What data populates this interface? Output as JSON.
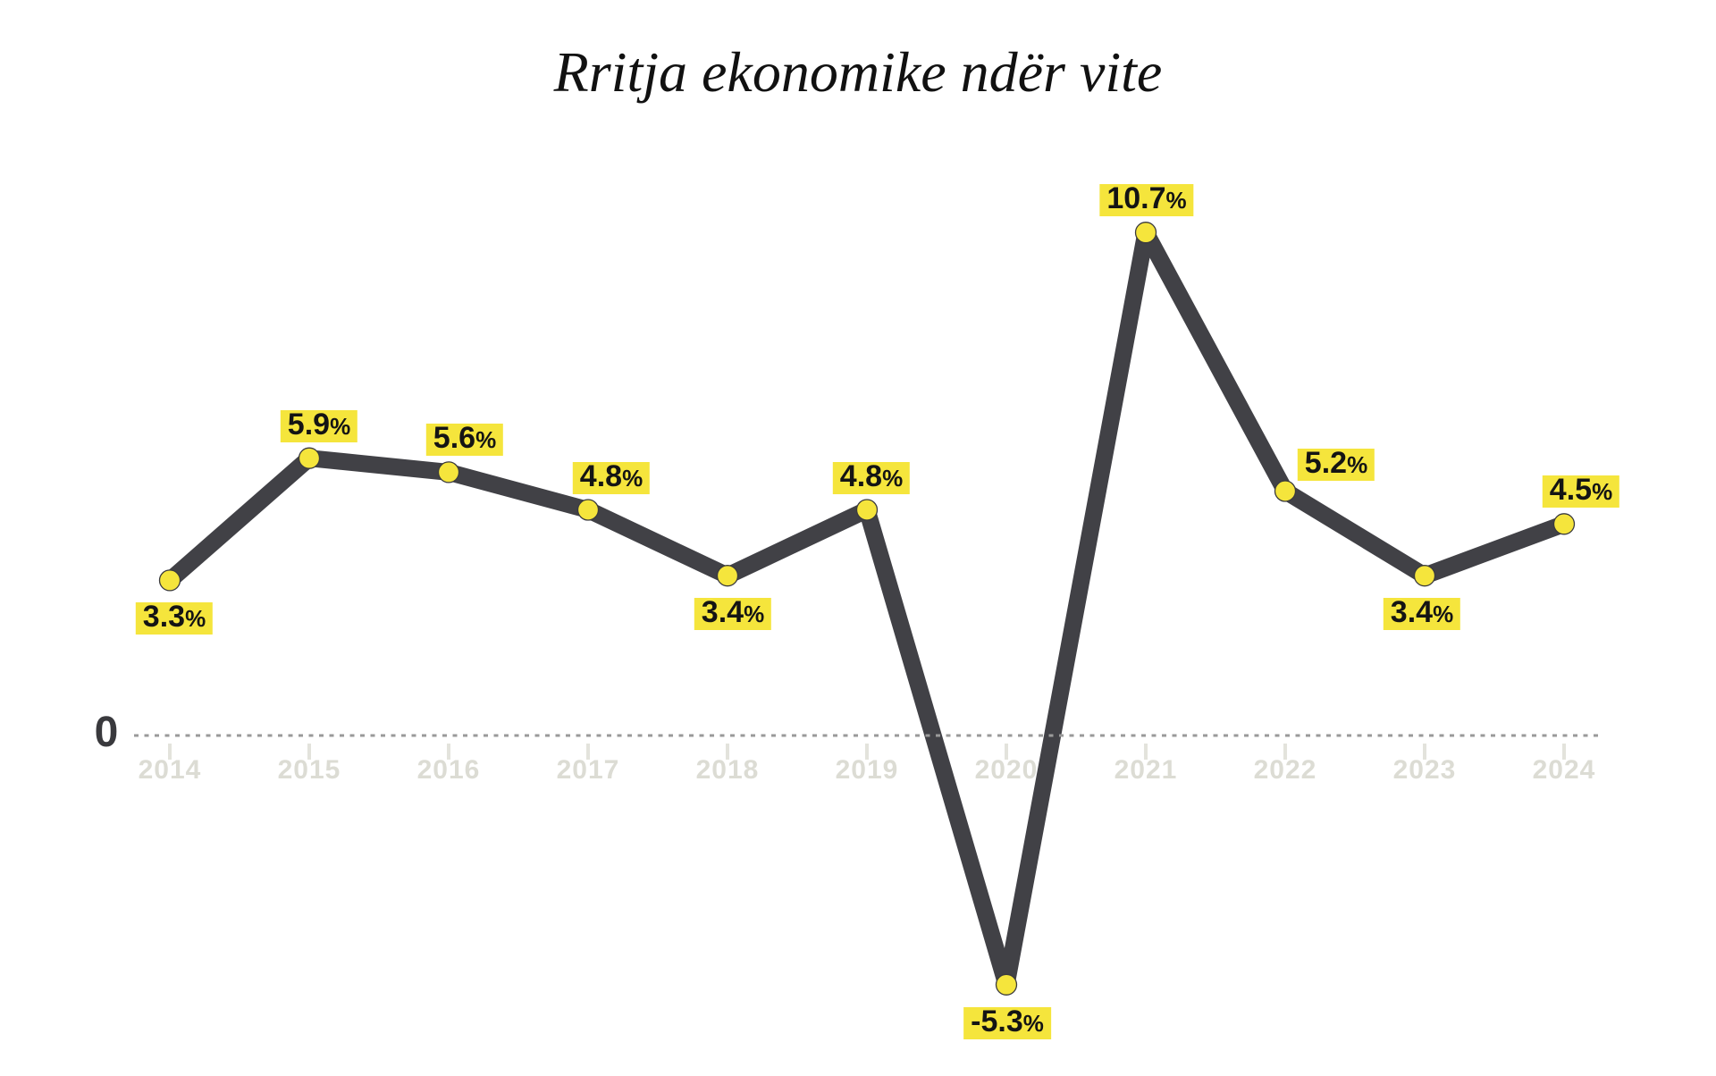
{
  "page": {
    "background": "#FFFFFF"
  },
  "header": {
    "title": "Rritja ekonomike ndër vite"
  },
  "axis": {
    "zero_label": "0",
    "years": [
      "2014",
      "2015",
      "2016",
      "2017",
      "2018",
      "2019",
      "2020",
      "2021",
      "2022",
      "2023",
      "2024"
    ]
  },
  "chart_data": {
    "type": "line",
    "title": "Rritja ekonomike ndër vite",
    "x": [
      2014,
      2015,
      2016,
      2017,
      2018,
      2019,
      2020,
      2021,
      2022,
      2023,
      2024
    ],
    "values": [
      3.3,
      5.9,
      5.6,
      4.8,
      3.4,
      4.8,
      -5.3,
      10.7,
      5.2,
      3.4,
      4.5
    ],
    "point_labels": [
      "3.3%",
      "5.9%",
      "5.6%",
      "4.8%",
      "3.4%",
      "4.8%",
      "-5.3%",
      "10.7%",
      "5.2%",
      "3.4%",
      "4.5%"
    ],
    "xlabel": "",
    "ylabel": "",
    "ylim": [
      -7.3,
      12.5
    ],
    "baseline": 0,
    "grid": "dotted horizontal line at zero only",
    "legend": "none",
    "marker": "filled circle",
    "colors": {
      "line": "#414146",
      "marker_fill": "#F5E53C",
      "marker_stroke": "#3A3A3E",
      "label_bg": "#F5E53C",
      "label_text": "#141414",
      "year_label": "#DCDCD4",
      "tick": "#E3E3DC",
      "zero_line": "#9A9A9A",
      "zero_label": "#39393D",
      "title": "#111111"
    },
    "label_layout": [
      {
        "side": "below",
        "dx": 5
      },
      {
        "side": "above",
        "dx": 11
      },
      {
        "side": "above",
        "dx": 18
      },
      {
        "side": "above",
        "dx": 26
      },
      {
        "side": "below",
        "dx": 6
      },
      {
        "side": "above",
        "dx": 5
      },
      {
        "side": "below",
        "dx": 1
      },
      {
        "side": "above",
        "dx": 1
      },
      {
        "side": "above",
        "dx": 57,
        "dy": -47
      },
      {
        "side": "below",
        "dx": -3
      },
      {
        "side": "above",
        "dx": 19
      }
    ]
  }
}
